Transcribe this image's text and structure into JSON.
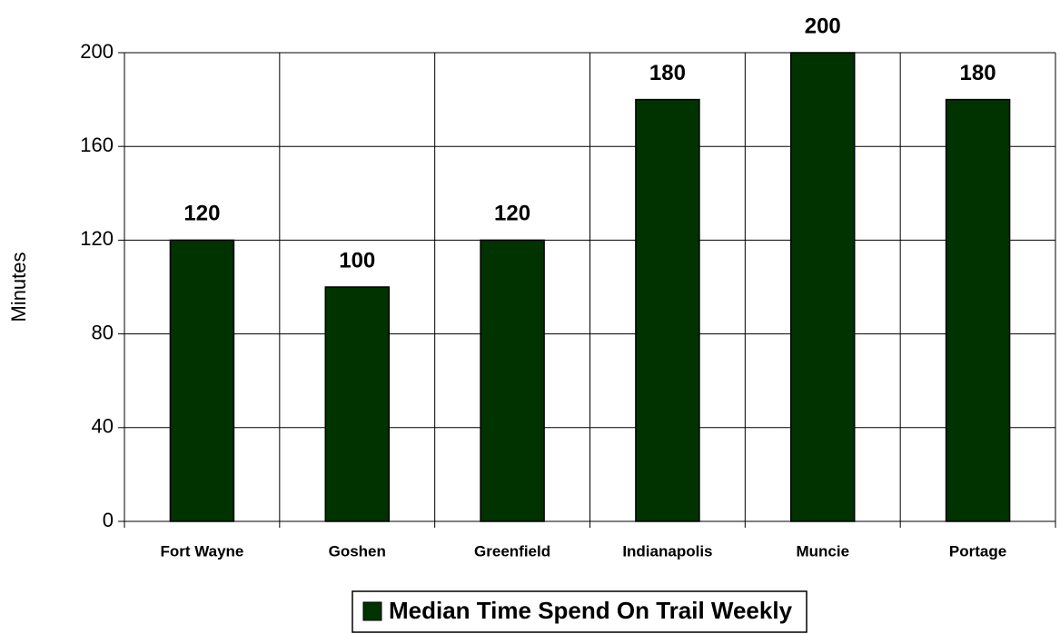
{
  "chart_data": {
    "type": "bar",
    "y_label": "Minutes",
    "categories": [
      "Fort Wayne",
      "Goshen",
      "Greenfield",
      "Indianapolis",
      "Muncie",
      "Portage"
    ],
    "series": [
      {
        "name": "Median Time Spend On Trail Weekly",
        "color": "#003300",
        "values": [
          120,
          100,
          120,
          180,
          200,
          180
        ]
      }
    ],
    "ylim": [
      0,
      200
    ],
    "yticks": [
      0,
      40,
      80,
      120,
      160,
      200
    ],
    "grid": true,
    "legend": "bottom"
  }
}
